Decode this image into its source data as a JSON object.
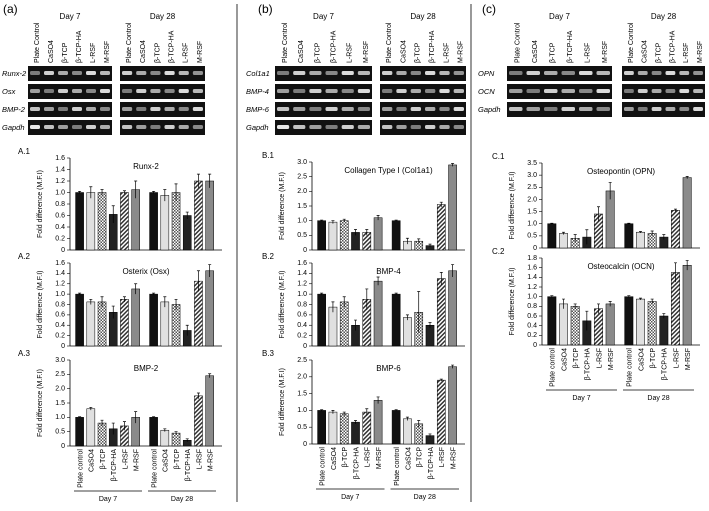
{
  "gel_days": [
    "Day 7",
    "Day 28"
  ],
  "gel_lanes": [
    "Plate Control",
    "CaSO4",
    "β-TCP",
    "β-TCP-HA",
    "L-RSF",
    "M-RSF"
  ],
  "gels": [
    {
      "panel": "(a)",
      "genes": [
        "Runx-2",
        "Osx",
        "BMP-2",
        "Gapdh"
      ]
    },
    {
      "panel": "(b)",
      "genes": [
        "Col1a1",
        "BMP-4",
        "BMP-6",
        "Gapdh"
      ]
    },
    {
      "panel": "(c)",
      "genes": [
        "OPN",
        "OCN",
        "Gapdh"
      ]
    }
  ],
  "chart_data": [
    {
      "type": "bar",
      "label": "A.1",
      "title": "Runx-2",
      "ylabel": "Fold difference (M.F.I)",
      "ylim": [
        0,
        1.6
      ],
      "yticks": [
        0,
        0.2,
        0.4,
        0.6,
        0.8,
        {
          "value": 1,
          "label": "1.0"
        },
        1.2,
        1.4,
        1.6
      ],
      "series": [
        {
          "values": [
            1.0,
            1.0
          ],
          "errors": [
            0.02,
            0.02
          ]
        },
        {
          "values": [
            1.0,
            0.95
          ],
          "errors": [
            0.1,
            0.1
          ]
        },
        {
          "values": [
            1.0,
            1.0
          ],
          "errors": [
            0.05,
            0.15
          ]
        },
        {
          "values": [
            0.62,
            0.6
          ],
          "errors": [
            0.15,
            0.06
          ]
        },
        {
          "values": [
            1.0,
            1.2
          ],
          "errors": [
            0.03,
            0.12
          ]
        },
        {
          "values": [
            1.05,
            1.2
          ],
          "errors": [
            0.15,
            0.12
          ]
        }
      ]
    },
    {
      "type": "bar",
      "label": "A.2",
      "title": "Osterix (Osx)",
      "ylabel": "Fold difference (M.F.I)",
      "ylim": [
        0,
        1.6
      ],
      "yticks": [
        0,
        0.2,
        0.4,
        0.6,
        0.8,
        {
          "value": 1,
          "label": "1.0"
        },
        1.2,
        1.4,
        1.6
      ],
      "series": [
        {
          "values": [
            1.0,
            1.0
          ],
          "errors": [
            0.02,
            0.02
          ]
        },
        {
          "values": [
            0.85,
            0.85
          ],
          "errors": [
            0.05,
            0.1
          ]
        },
        {
          "values": [
            0.85,
            0.8
          ],
          "errors": [
            0.1,
            0.1
          ]
        },
        {
          "values": [
            0.65,
            0.3
          ],
          "errors": [
            0.12,
            0.1
          ]
        },
        {
          "values": [
            0.9,
            1.25
          ],
          "errors": [
            0.05,
            0.2
          ]
        },
        {
          "values": [
            1.1,
            1.45
          ],
          "errors": [
            0.1,
            0.12
          ]
        }
      ]
    },
    {
      "type": "bar",
      "label": "A.3",
      "title": "BMP-2",
      "ylabel": "Fold difference (M.F.I)",
      "ylim": [
        0,
        3
      ],
      "yticks": [
        0,
        0.5,
        {
          "value": 1,
          "label": "1.0"
        },
        1.5,
        {
          "value": 2,
          "label": "2.0"
        },
        2.5,
        {
          "value": 3,
          "label": "3.0"
        }
      ],
      "categories": [
        "Day 7",
        "Day 28"
      ],
      "series": [
        {
          "name": "Plate control",
          "values": [
            1.0,
            1.0
          ],
          "errors": [
            0.02,
            0.02
          ]
        },
        {
          "name": "CaSO4",
          "values": [
            1.3,
            0.55
          ],
          "errors": [
            0.05,
            0.05
          ]
        },
        {
          "name": "β-TCP",
          "values": [
            0.8,
            0.45
          ],
          "errors": [
            0.1,
            0.05
          ]
        },
        {
          "name": "β-TCP-HA",
          "values": [
            0.6,
            0.2
          ],
          "errors": [
            0.2,
            0.05
          ]
        },
        {
          "name": "L-RSF",
          "values": [
            0.7,
            1.75
          ],
          "errors": [
            0.15,
            0.1
          ]
        },
        {
          "name": "M-RSF",
          "values": [
            1.0,
            2.45
          ],
          "errors": [
            0.2,
            0.07
          ]
        }
      ]
    },
    {
      "type": "bar",
      "label": "B.1",
      "title": "Collagen Type I (Col1a1)",
      "ylabel": "Fold difference (M.F.I)",
      "ylim": [
        0,
        3
      ],
      "yticks": [
        0,
        0.5,
        {
          "value": 1,
          "label": "1.0"
        },
        1.5,
        {
          "value": 2,
          "label": "2.0"
        },
        2.5,
        {
          "value": 3,
          "label": "3.0"
        }
      ],
      "series": [
        {
          "values": [
            1.0,
            1.0
          ],
          "errors": [
            0.02,
            0.02
          ]
        },
        {
          "values": [
            0.95,
            0.3
          ],
          "errors": [
            0.05,
            0.1
          ]
        },
        {
          "values": [
            1.0,
            0.3
          ],
          "errors": [
            0.05,
            0.08
          ]
        },
        {
          "values": [
            0.6,
            0.15
          ],
          "errors": [
            0.1,
            0.05
          ]
        },
        {
          "values": [
            0.6,
            1.55
          ],
          "errors": [
            0.1,
            0.08
          ]
        },
        {
          "values": [
            1.1,
            2.9
          ],
          "errors": [
            0.08,
            0.05
          ]
        }
      ]
    },
    {
      "type": "bar",
      "label": "B.2",
      "title": "BMP-4",
      "ylabel": "Fold difference (M.F.I)",
      "ylim": [
        0,
        1.6
      ],
      "yticks": [
        0,
        0.2,
        0.4,
        0.6,
        0.8,
        {
          "value": 1,
          "label": "1.0"
        },
        1.2,
        1.4,
        1.6
      ],
      "series": [
        {
          "values": [
            1.0,
            1.0
          ],
          "errors": [
            0.02,
            0.02
          ]
        },
        {
          "values": [
            0.75,
            0.55
          ],
          "errors": [
            0.1,
            0.05
          ]
        },
        {
          "values": [
            0.85,
            0.65
          ],
          "errors": [
            0.1,
            0.4
          ]
        },
        {
          "values": [
            0.4,
            0.4
          ],
          "errors": [
            0.1,
            0.05
          ]
        },
        {
          "values": [
            0.9,
            1.3
          ],
          "errors": [
            0.2,
            0.12
          ]
        },
        {
          "values": [
            1.25,
            1.45
          ],
          "errors": [
            0.08,
            0.12
          ]
        }
      ]
    },
    {
      "type": "bar",
      "label": "B.3",
      "title": "BMP-6",
      "ylabel": "Fold difference (M.F.I)",
      "ylim": [
        0,
        2.5
      ],
      "yticks": [
        0,
        0.5,
        {
          "value": 1,
          "label": "1.0"
        },
        1.5,
        {
          "value": 2,
          "label": "2.0"
        },
        2.5
      ],
      "categories": [
        "Day 7",
        "Day 28"
      ],
      "series": [
        {
          "name": "Plate control",
          "values": [
            1.0,
            1.0
          ],
          "errors": [
            0.02,
            0.02
          ]
        },
        {
          "name": "CaSO4",
          "values": [
            0.95,
            0.75
          ],
          "errors": [
            0.05,
            0.05
          ]
        },
        {
          "name": "β-TCP",
          "values": [
            0.9,
            0.6
          ],
          "errors": [
            0.05,
            0.1
          ]
        },
        {
          "name": "β-TCP-HA",
          "values": [
            0.65,
            0.25
          ],
          "errors": [
            0.05,
            0.05
          ]
        },
        {
          "name": "L-RSF",
          "values": [
            0.95,
            1.9
          ],
          "errors": [
            0.1,
            0.03
          ]
        },
        {
          "name": "M-RSF",
          "values": [
            1.3,
            2.3
          ],
          "errors": [
            0.1,
            0.05
          ]
        }
      ]
    },
    {
      "type": "bar",
      "label": "C.1",
      "title": "Osteopontin (OPN)",
      "ylabel": "Fold difference (M.F.I)",
      "ylim": [
        0,
        3.5
      ],
      "yticks": [
        0,
        0.5,
        {
          "value": 1,
          "label": "1.0"
        },
        1.5,
        {
          "value": 2,
          "label": "2.0"
        },
        2.5,
        {
          "value": 3,
          "label": "3.0"
        },
        3.5
      ],
      "series": [
        {
          "values": [
            1.0,
            1.0
          ],
          "errors": [
            0.02,
            0.02
          ]
        },
        {
          "values": [
            0.6,
            0.65
          ],
          "errors": [
            0.05,
            0.03
          ]
        },
        {
          "values": [
            0.4,
            0.6
          ],
          "errors": [
            0.15,
            0.1
          ]
        },
        {
          "values": [
            0.45,
            0.45
          ],
          "errors": [
            0.3,
            0.1
          ]
        },
        {
          "values": [
            1.4,
            1.55
          ],
          "errors": [
            0.3,
            0.05
          ]
        },
        {
          "values": [
            2.35,
            2.9
          ],
          "errors": [
            0.35,
            0.05
          ]
        }
      ]
    },
    {
      "type": "bar",
      "label": "C.2",
      "title": "Osteocalcin (OCN)",
      "ylabel": "Fold difference (M.F.I)",
      "ylim": [
        0,
        1.8
      ],
      "yticks": [
        0,
        0.2,
        0.4,
        0.6,
        0.8,
        {
          "value": 1,
          "label": "1.0"
        },
        1.2,
        1.4,
        1.6,
        1.8
      ],
      "categories": [
        "Day 7",
        "Day 28"
      ],
      "series": [
        {
          "name": "Plate control",
          "values": [
            1.0,
            1.0
          ],
          "errors": [
            0.02,
            0.02
          ]
        },
        {
          "name": "CaSO4",
          "values": [
            0.85,
            0.95
          ],
          "errors": [
            0.1,
            0.02
          ]
        },
        {
          "name": "β-TCP",
          "values": [
            0.8,
            0.9
          ],
          "errors": [
            0.05,
            0.05
          ]
        },
        {
          "name": "β-TCP-HA",
          "values": [
            0.5,
            0.6
          ],
          "errors": [
            0.2,
            0.05
          ]
        },
        {
          "name": "L-RSF",
          "values": [
            0.75,
            1.5
          ],
          "errors": [
            0.1,
            0.2
          ]
        },
        {
          "name": "M-RSF",
          "values": [
            0.85,
            1.65
          ],
          "errors": [
            0.05,
            0.1
          ]
        }
      ]
    }
  ]
}
